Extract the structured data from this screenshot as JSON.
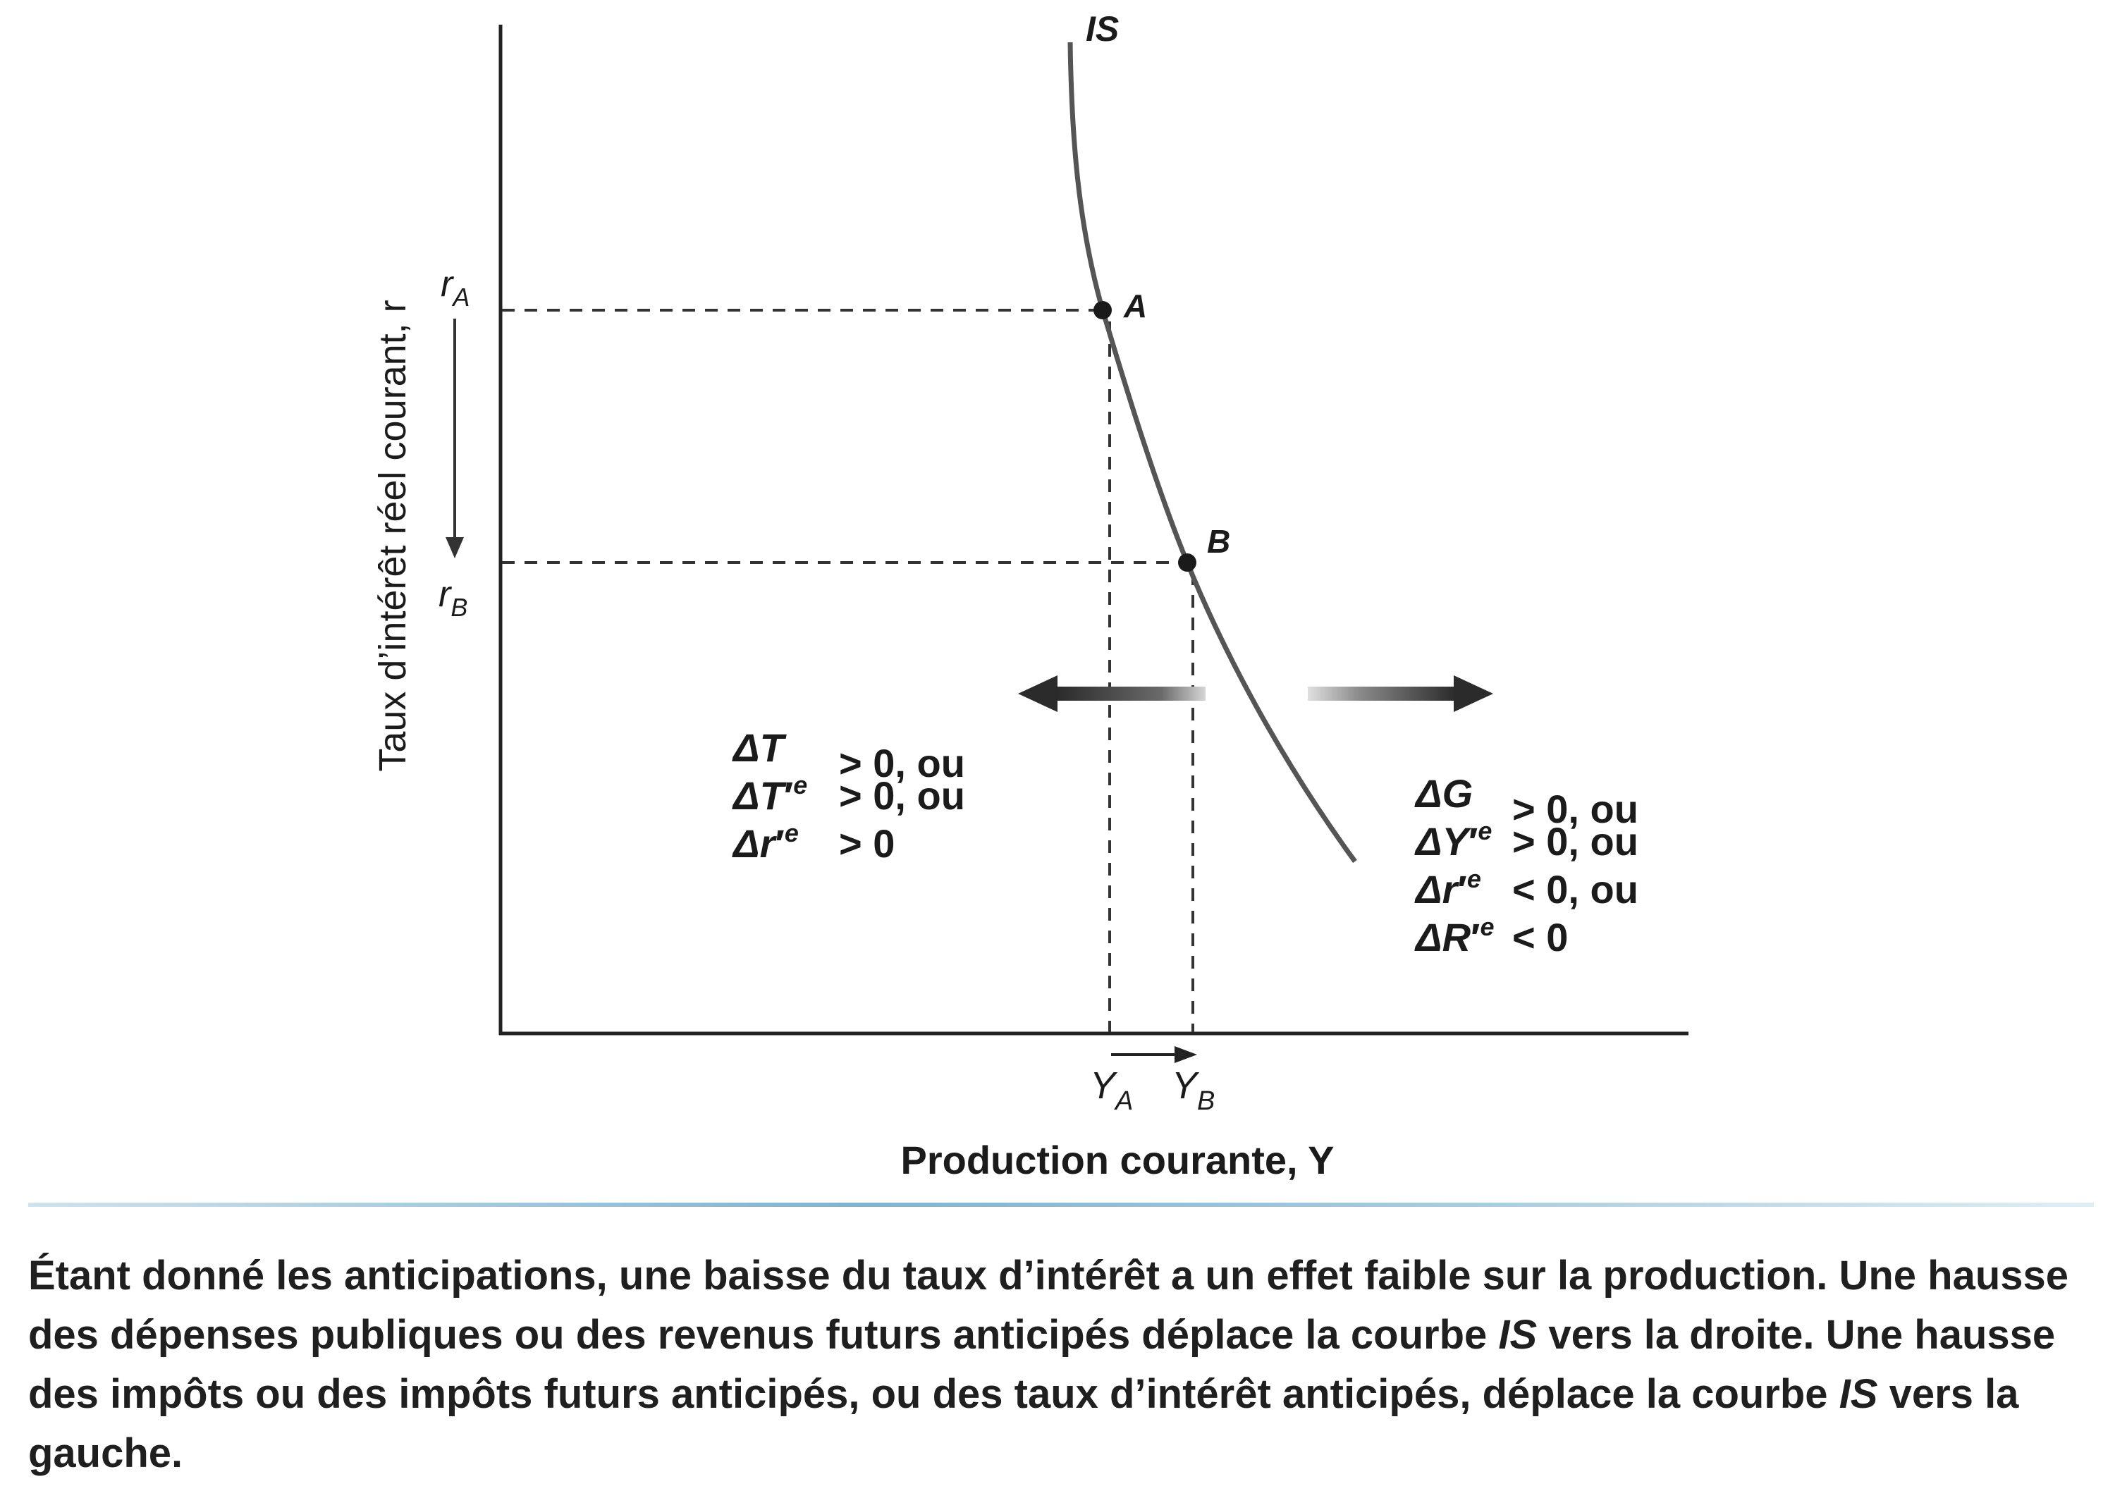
{
  "diagram": {
    "curve_label": "IS",
    "point_a": "A",
    "point_b": "B",
    "y_axis_label": "Taux d’intérêt réel courant, r",
    "x_axis_label": "Production courante, Y",
    "r_a": {
      "base": "r",
      "sub": "A"
    },
    "r_b": {
      "base": "r",
      "sub": "B"
    },
    "y_a": {
      "base": "Y",
      "sub": "A"
    },
    "y_b": {
      "base": "Y",
      "sub": "B"
    },
    "left_shift": {
      "lines": [
        {
          "delta": "ΔT",
          "var": "",
          "sup": "",
          "rest": "> 0, ou"
        },
        {
          "delta": "ΔT",
          "var": "′",
          "sup": "e",
          "rest": "> 0, ou"
        },
        {
          "delta": "Δr",
          "var": "′",
          "sup": "e",
          "rest": "> 0"
        }
      ]
    },
    "right_shift": {
      "lines": [
        {
          "delta": "ΔG",
          "var": "",
          "sup": "",
          "rest": "> 0, ou"
        },
        {
          "delta": "ΔY",
          "var": "′",
          "sup": "e",
          "rest": "> 0, ou"
        },
        {
          "delta": "Δr",
          "var": "′",
          "sup": "e",
          "rest": "< 0, ou"
        },
        {
          "delta": "ΔR",
          "var": "′",
          "sup": "e",
          "rest": "< 0"
        }
      ]
    }
  },
  "caption": {
    "part1": "Étant donné les anticipations, une baisse du taux d’intérêt a un effet faible sur la production. Une hausse des dépenses publiques ou des revenus futurs anticipés déplace la courbe ",
    "is1": "IS",
    "part2": " vers la droite. Une hausse des impôts ou des impôts futurs anticipés, ou des taux d’intérêt anticipés, déplace la courbe ",
    "is2": "IS",
    "part3": " vers la gauche."
  }
}
